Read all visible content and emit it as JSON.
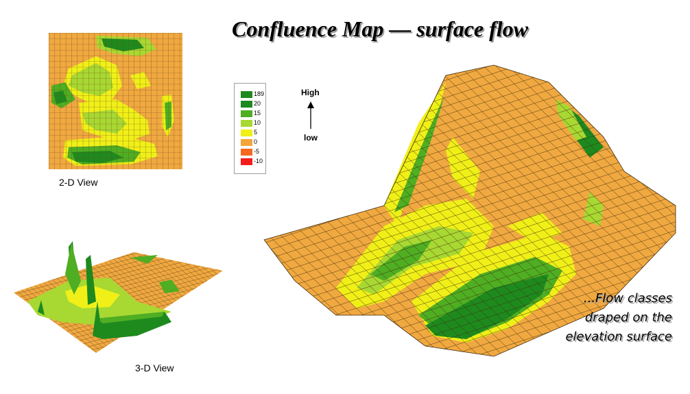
{
  "title": "Confluence Map — surface flow",
  "view_2d_label": "2-D View",
  "view_3d_label": "3-D View",
  "legend": {
    "items": [
      {
        "label": "189",
        "color": "#1e8a1e"
      },
      {
        "label": "20",
        "color": "#1e8a1e"
      },
      {
        "label": "15",
        "color": "#4fae22"
      },
      {
        "label": "10",
        "color": "#a8d832"
      },
      {
        "label": "5",
        "color": "#f0f018"
      },
      {
        "label": "0",
        "color": "#f4a53a"
      },
      {
        "label": "-5",
        "color": "#f36a1e"
      },
      {
        "label": "-10",
        "color": "#f21c1c"
      }
    ]
  },
  "scale": {
    "high": "High",
    "low": "low"
  },
  "annotation": {
    "lines": [
      "...Flow classes",
      "draped on the",
      "elevation surface"
    ]
  },
  "colors": {
    "base": "#f0a840",
    "dark_green": "#1e8a1e",
    "green": "#4fae22",
    "light_green": "#a8d832",
    "yellow": "#f0f018",
    "grid": "#4a3010"
  }
}
